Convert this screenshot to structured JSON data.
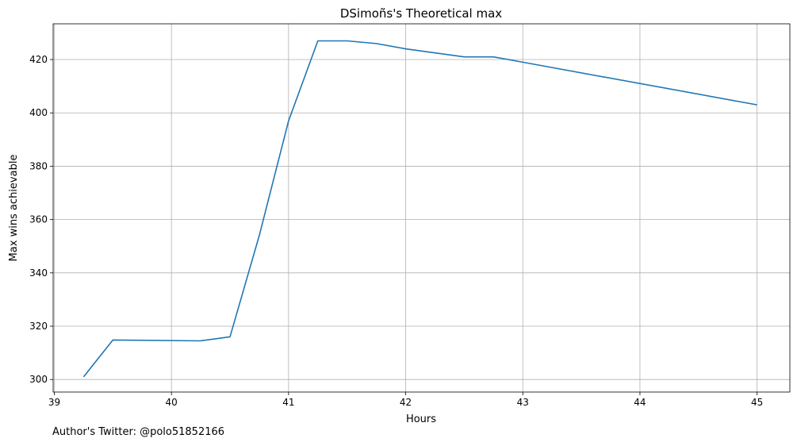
{
  "chart_data": {
    "type": "line",
    "title": "DSimoñs's Theoretical max",
    "xlabel": "Hours",
    "ylabel": "Max wins achievable",
    "xlim": [
      38.99,
      45.28
    ],
    "ylim": [
      295.3,
      433.4
    ],
    "xticks": [
      39,
      40,
      41,
      42,
      43,
      44,
      45
    ],
    "yticks": [
      300,
      320,
      340,
      360,
      380,
      400,
      420
    ],
    "grid": true,
    "line_color": "#1f77b4",
    "series": [
      {
        "x": [
          39.25,
          39.5,
          40.25,
          40.5,
          40.75,
          41.0,
          41.25,
          41.5,
          41.75,
          42.0,
          42.5,
          42.75,
          43.0,
          45.0
        ],
        "y": [
          301,
          314.8,
          314.5,
          316,
          354,
          397,
          427,
          427,
          426,
          424,
          421,
          421,
          419,
          403
        ]
      }
    ]
  },
  "footnote": "Author's Twitter: @polo51852166"
}
